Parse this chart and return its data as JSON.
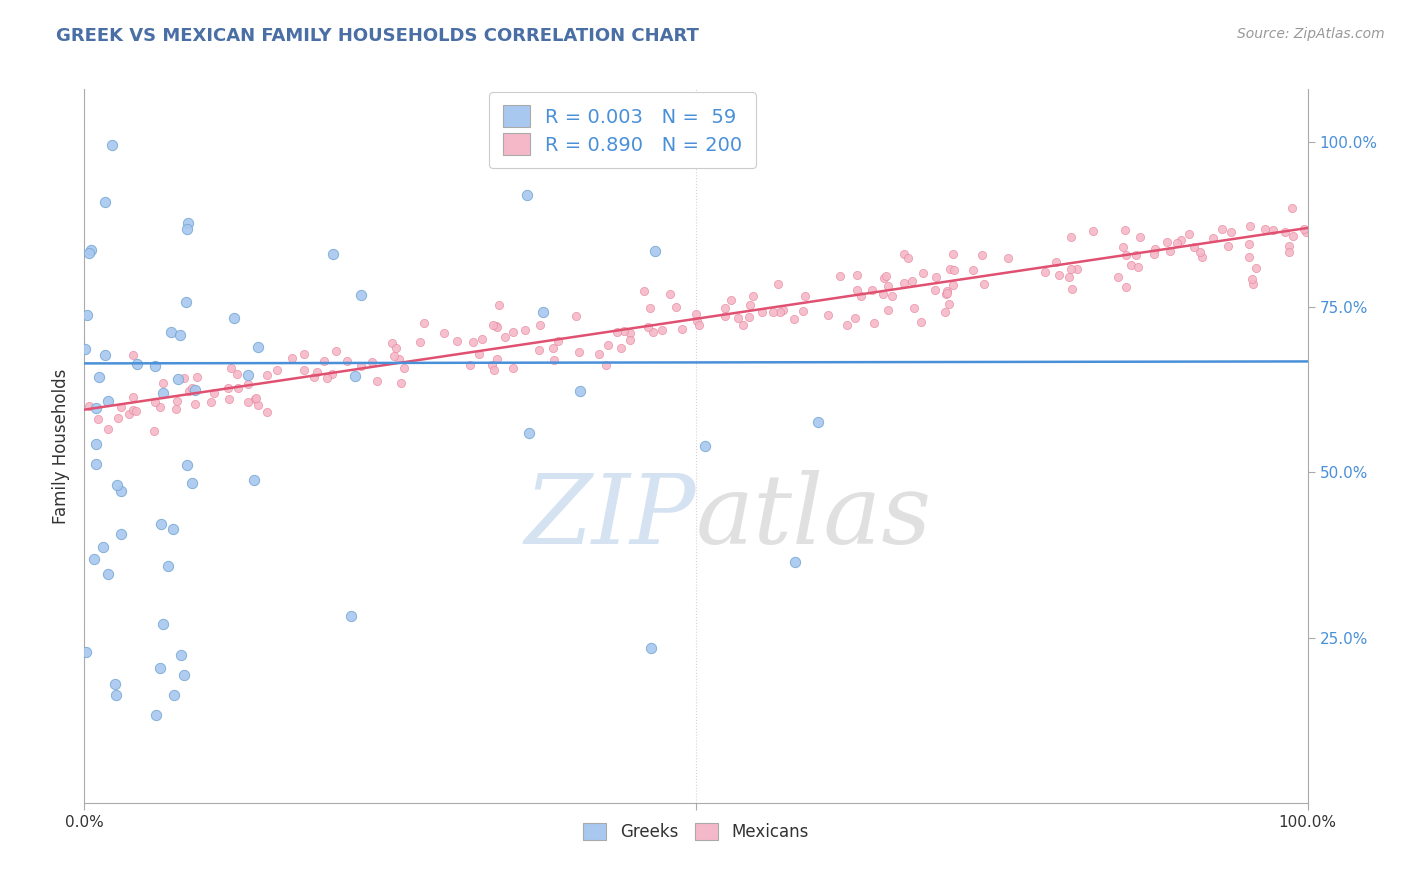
{
  "title": "GREEK VS MEXICAN FAMILY HOUSEHOLDS CORRELATION CHART",
  "source": "Source: ZipAtlas.com",
  "ylabel": "Family Households",
  "right_yticks": [
    "100.0%",
    "75.0%",
    "50.0%",
    "25.0%"
  ],
  "right_ytick_vals": [
    1.0,
    0.75,
    0.5,
    0.25
  ],
  "title_color": "#4a6fa5",
  "source_color": "#999999",
  "greek_color": "#a8c8f0",
  "greek_edge_color": "#7aaad4",
  "mexican_color": "#f5b8c8",
  "mexican_edge_color": "#e88aa0",
  "greek_line_color": "#4a90d9",
  "mexican_line_color": "#e05070",
  "background_color": "#ffffff",
  "grid_color": "#d0d0d0",
  "watermark_zip_color": "#b8d0ea",
  "watermark_atlas_color": "#c8c8c8",
  "legend_greek_label": "Greeks",
  "legend_mexican_label": "Mexicans",
  "greek_R": "R = 0.003",
  "greek_N": "N =  59",
  "mexican_R": "R = 0.890",
  "mexican_N": "N = 200",
  "greek_line_intercept": 0.665,
  "greek_line_slope": 0.003,
  "mexican_line_intercept": 0.595,
  "mexican_line_slope": 0.275
}
